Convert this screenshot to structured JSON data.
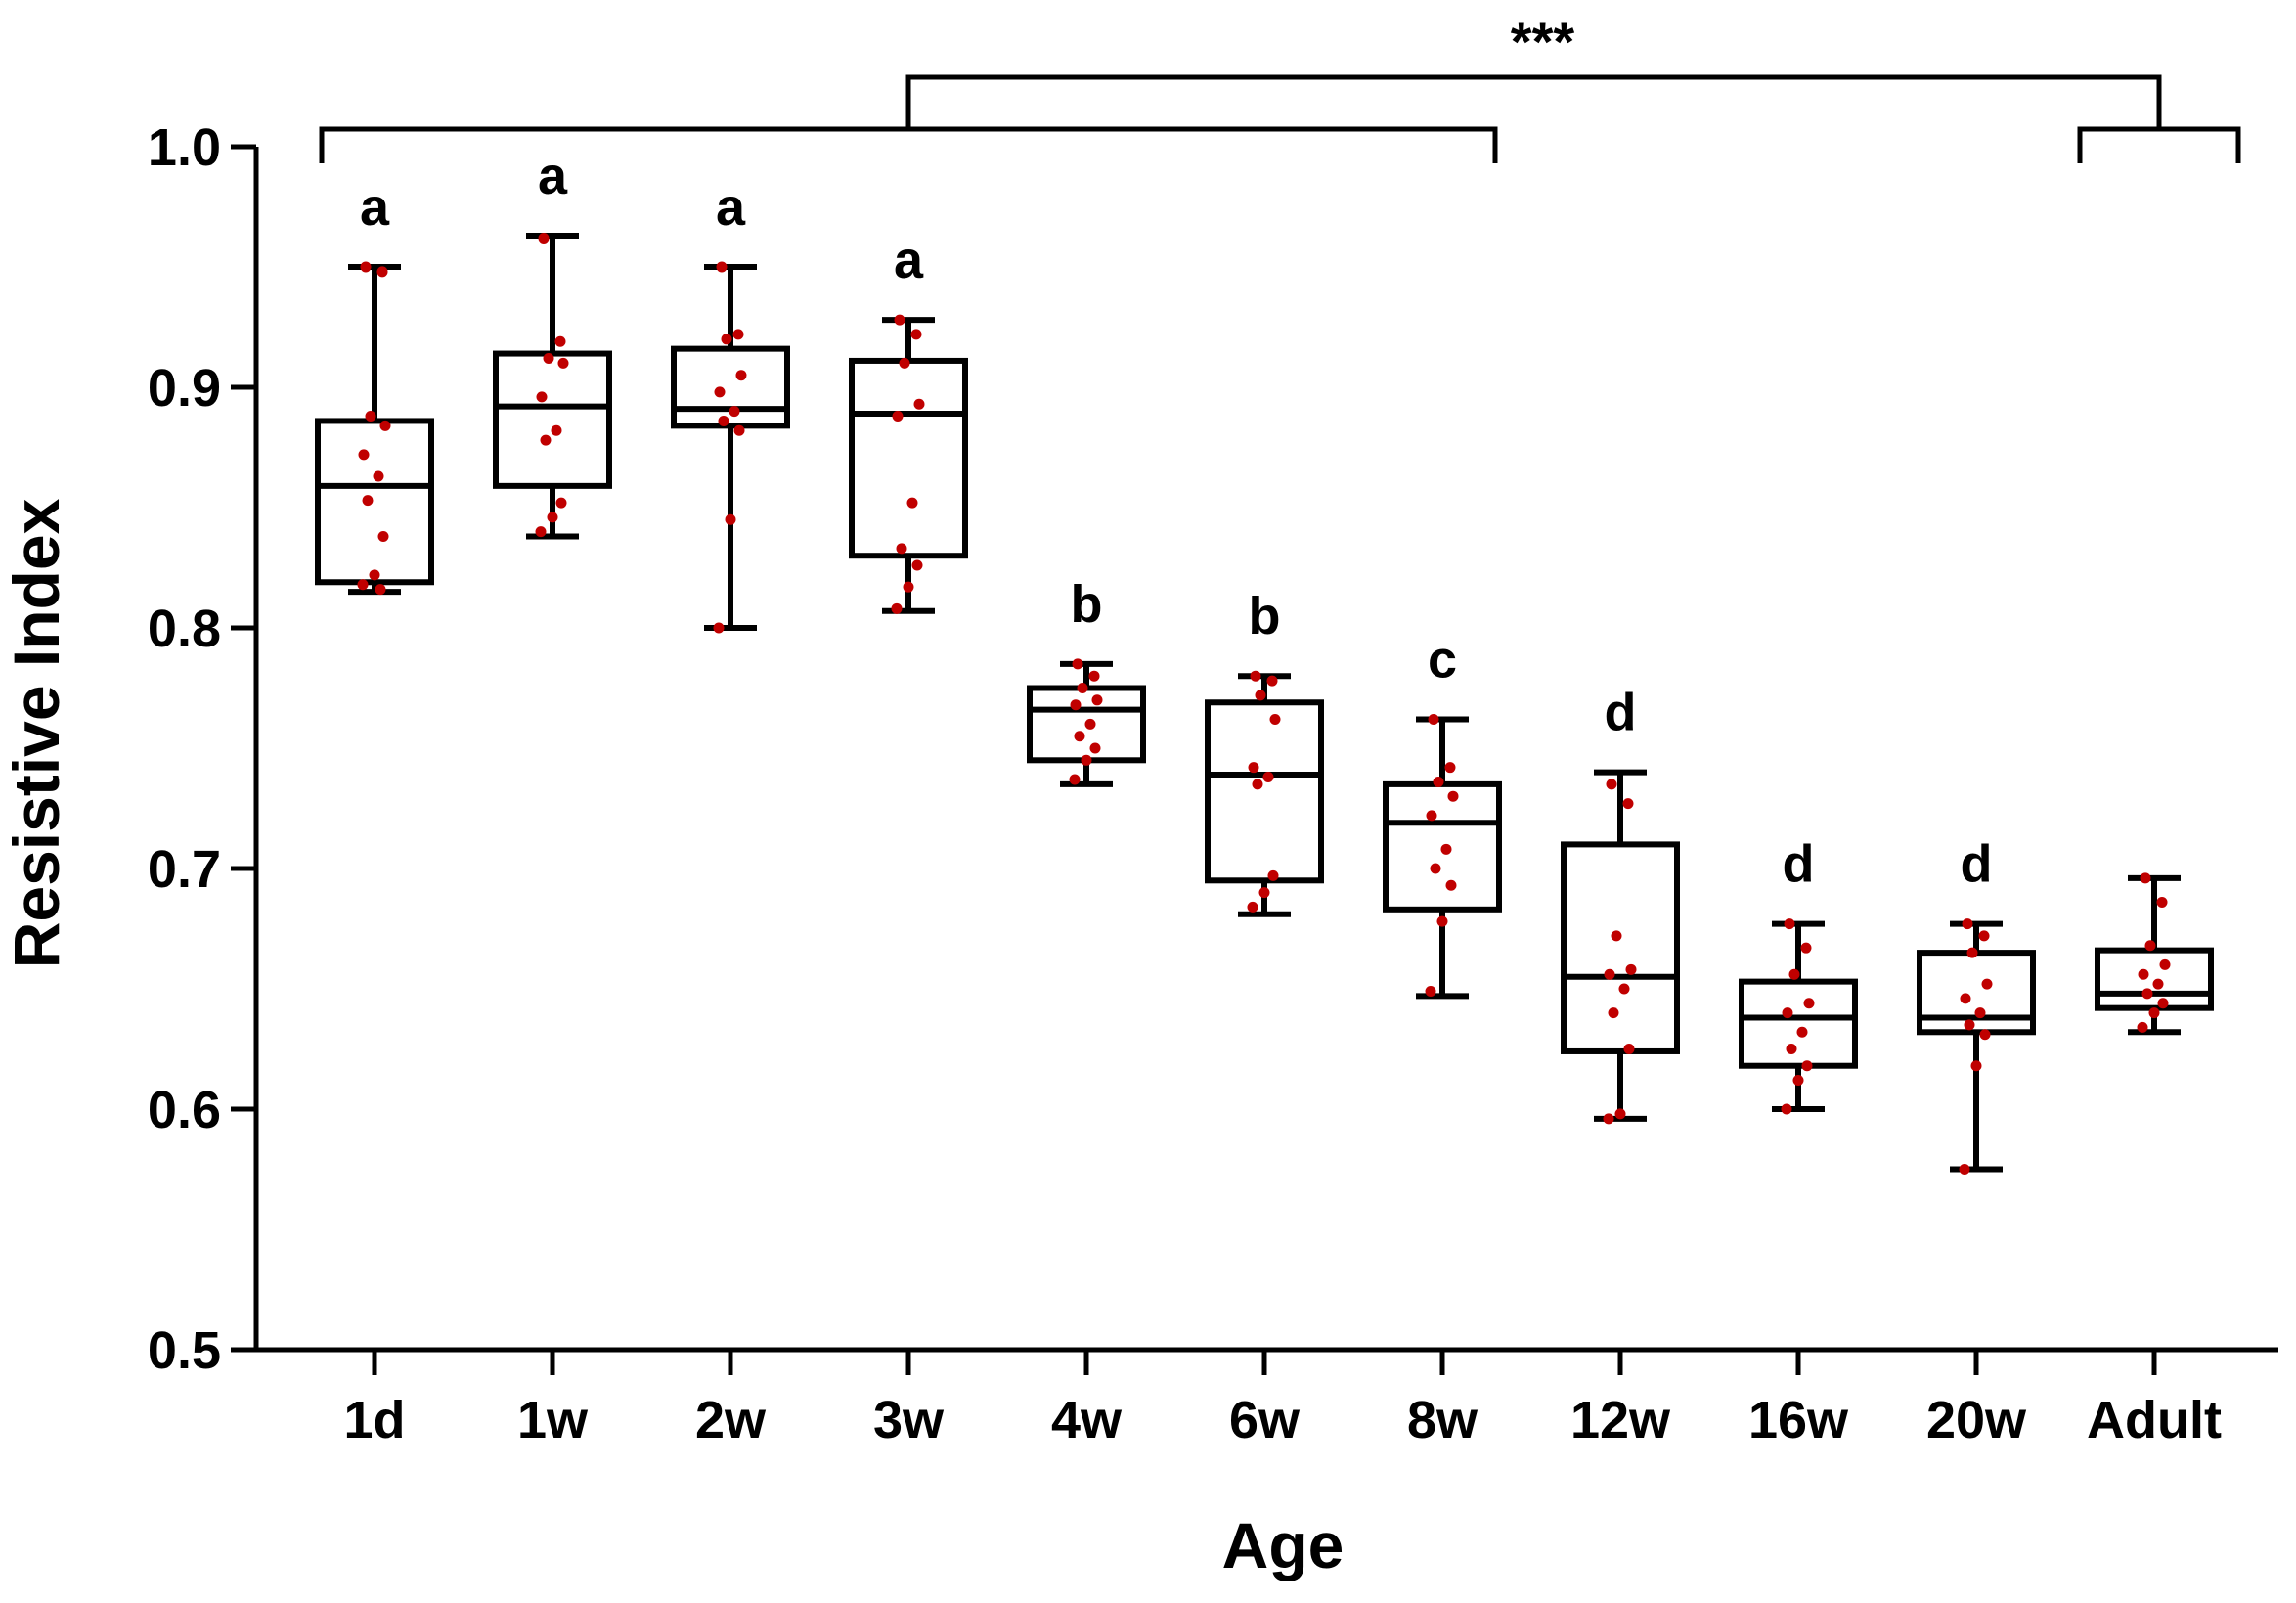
{
  "colors": {
    "axis": "#000000",
    "box": "#000000",
    "point": "#c00000",
    "background": "#ffffff"
  },
  "chart_data": {
    "type": "box",
    "xlabel": "Age",
    "ylabel": "Resistive Index",
    "ylim": [
      0.5,
      1.0
    ],
    "yticks": [
      "0.5",
      "0.6",
      "0.7",
      "0.8",
      "0.9",
      "1.0"
    ],
    "categories": [
      "1d",
      "1w",
      "2w",
      "3w",
      "4w",
      "6w",
      "8w",
      "12w",
      "16w",
      "20w",
      "Adult"
    ],
    "boxes": [
      {
        "category": "1d",
        "min": 0.815,
        "q1": 0.819,
        "median": 0.859,
        "q3": 0.886,
        "max": 0.95,
        "letter": "a"
      },
      {
        "category": "1w",
        "min": 0.838,
        "q1": 0.859,
        "median": 0.892,
        "q3": 0.914,
        "max": 0.963,
        "letter": "a"
      },
      {
        "category": "2w",
        "min": 0.8,
        "q1": 0.884,
        "median": 0.891,
        "q3": 0.916,
        "max": 0.95,
        "letter": "a"
      },
      {
        "category": "3w",
        "min": 0.807,
        "q1": 0.83,
        "median": 0.889,
        "q3": 0.911,
        "max": 0.928,
        "letter": "a"
      },
      {
        "category": "4w",
        "min": 0.735,
        "q1": 0.745,
        "median": 0.766,
        "q3": 0.775,
        "max": 0.785,
        "letter": "b"
      },
      {
        "category": "6w",
        "min": 0.681,
        "q1": 0.695,
        "median": 0.739,
        "q3": 0.769,
        "max": 0.78,
        "letter": "b"
      },
      {
        "category": "8w",
        "min": 0.647,
        "q1": 0.683,
        "median": 0.719,
        "q3": 0.735,
        "max": 0.762,
        "letter": "c"
      },
      {
        "category": "12w",
        "min": 0.596,
        "q1": 0.624,
        "median": 0.655,
        "q3": 0.71,
        "max": 0.74,
        "letter": "d"
      },
      {
        "category": "16w",
        "min": 0.6,
        "q1": 0.618,
        "median": 0.638,
        "q3": 0.653,
        "max": 0.677,
        "letter": "d"
      },
      {
        "category": "20w",
        "min": 0.575,
        "q1": 0.632,
        "median": 0.638,
        "q3": 0.665,
        "max": 0.677,
        "letter": "d"
      },
      {
        "category": "Adult",
        "min": 0.632,
        "q1": 0.642,
        "median": 0.648,
        "q3": 0.666,
        "max": 0.696,
        "letter": ""
      }
    ],
    "points": [
      [
        0.95,
        0.948,
        0.888,
        0.884,
        0.872,
        0.863,
        0.853,
        0.838,
        0.822,
        0.818,
        0.816
      ],
      [
        0.962,
        0.919,
        0.912,
        0.91,
        0.896,
        0.882,
        0.878,
        0.852,
        0.846,
        0.84
      ],
      [
        0.95,
        0.922,
        0.92,
        0.905,
        0.898,
        0.89,
        0.886,
        0.882,
        0.845,
        0.8
      ],
      [
        0.928,
        0.922,
        0.91,
        0.893,
        0.888,
        0.852,
        0.833,
        0.826,
        0.817,
        0.808
      ],
      [
        0.785,
        0.78,
        0.775,
        0.77,
        0.768,
        0.76,
        0.755,
        0.75,
        0.745,
        0.737
      ],
      [
        0.78,
        0.778,
        0.772,
        0.762,
        0.742,
        0.738,
        0.735,
        0.697,
        0.69,
        0.684
      ],
      [
        0.762,
        0.742,
        0.736,
        0.73,
        0.722,
        0.708,
        0.7,
        0.693,
        0.678,
        0.649
      ],
      [
        0.735,
        0.727,
        0.672,
        0.658,
        0.656,
        0.65,
        0.64,
        0.625,
        0.598,
        0.596
      ],
      [
        0.677,
        0.667,
        0.656,
        0.644,
        0.64,
        0.632,
        0.625,
        0.618,
        0.612,
        0.6
      ],
      [
        0.677,
        0.672,
        0.665,
        0.652,
        0.646,
        0.64,
        0.635,
        0.631,
        0.618,
        0.575
      ],
      [
        0.696,
        0.686,
        0.668,
        0.66,
        0.656,
        0.652,
        0.648,
        0.644,
        0.64,
        0.634
      ]
    ],
    "significance": {
      "label": "***",
      "group_a": [
        "1d",
        "8w"
      ],
      "group_b": [
        "Adult"
      ]
    }
  }
}
